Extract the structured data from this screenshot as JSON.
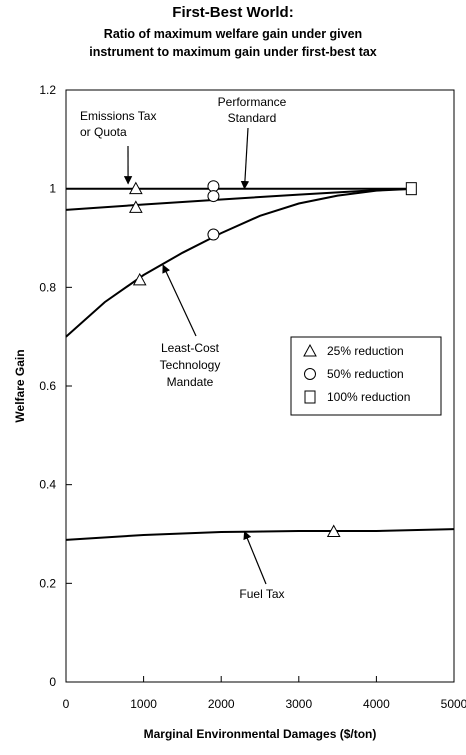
{
  "chart_data": {
    "type": "line",
    "title": "First-Best World:",
    "subtitle_lines": [
      "Ratio of maximum welfare gain under given",
      "instrument to maximum gain under first-best tax"
    ],
    "xlabel": "Marginal Environmental Damages ($/ton)",
    "ylabel": "Welfare Gain",
    "xlim": [
      0,
      5000
    ],
    "ylim": [
      0,
      1.2
    ],
    "xticks": [
      "0",
      "1000",
      "2000",
      "3000",
      "4000",
      "5000"
    ],
    "yticks": [
      "0",
      "0.2",
      "0.4",
      "0.6",
      "0.8",
      "1",
      "1.2"
    ],
    "grid": false,
    "legend_position": "center-right",
    "legend": [
      {
        "marker": "triangle",
        "label": "25% reduction"
      },
      {
        "marker": "circle",
        "label": "50% reduction"
      },
      {
        "marker": "square",
        "label": "100% reduction"
      }
    ],
    "series": [
      {
        "x": [
          0,
          4500
        ],
        "y": [
          1.0,
          1.0
        ]
      },
      {
        "x": [
          0,
          1000,
          2000,
          3000,
          4000,
          4500
        ],
        "y": [
          0.957,
          0.968,
          0.978,
          0.988,
          0.997,
          1.0
        ]
      },
      {
        "x": [
          0,
          500,
          1000,
          1500,
          2000,
          2500,
          3000,
          3500,
          4000,
          4500
        ],
        "y": [
          0.7,
          0.77,
          0.825,
          0.87,
          0.91,
          0.945,
          0.97,
          0.986,
          0.996,
          1.0
        ]
      },
      {
        "x": [
          0,
          1000,
          2000,
          3000,
          4000,
          5000
        ],
        "y": [
          0.288,
          0.298,
          0.304,
          0.306,
          0.306,
          0.31
        ]
      }
    ],
    "markers": [
      {
        "shape": "triangle",
        "x": 900,
        "y": 1.0
      },
      {
        "shape": "triangle",
        "x": 900,
        "y": 0.962
      },
      {
        "shape": "triangle",
        "x": 950,
        "y": 0.815
      },
      {
        "shape": "triangle",
        "x": 3450,
        "y": 0.305
      },
      {
        "shape": "circle",
        "x": 1900,
        "y": 1.005
      },
      {
        "shape": "circle",
        "x": 1900,
        "y": 0.985
      },
      {
        "shape": "circle",
        "x": 1900,
        "y": 0.907
      },
      {
        "shape": "square",
        "x": 4450,
        "y": 1.0
      }
    ],
    "annotations": [
      {
        "id": "emissions",
        "lines": [
          "Emissions Tax",
          "or Quota"
        ],
        "arrow_to": {
          "x": 800,
          "y": 1.0
        }
      },
      {
        "id": "performance",
        "lines": [
          "Performance",
          "Standard"
        ],
        "arrow_to": {
          "x": 2300,
          "y": 0.99
        }
      },
      {
        "id": "leastcost",
        "lines": [
          "Least-Cost",
          "Technology",
          "Mandate"
        ],
        "arrow_to": {
          "x": 1250,
          "y": 0.845
        }
      },
      {
        "id": "fueltax",
        "lines": [
          "Fuel Tax"
        ],
        "arrow_to": {
          "x": 2300,
          "y": 0.305
        }
      }
    ]
  }
}
